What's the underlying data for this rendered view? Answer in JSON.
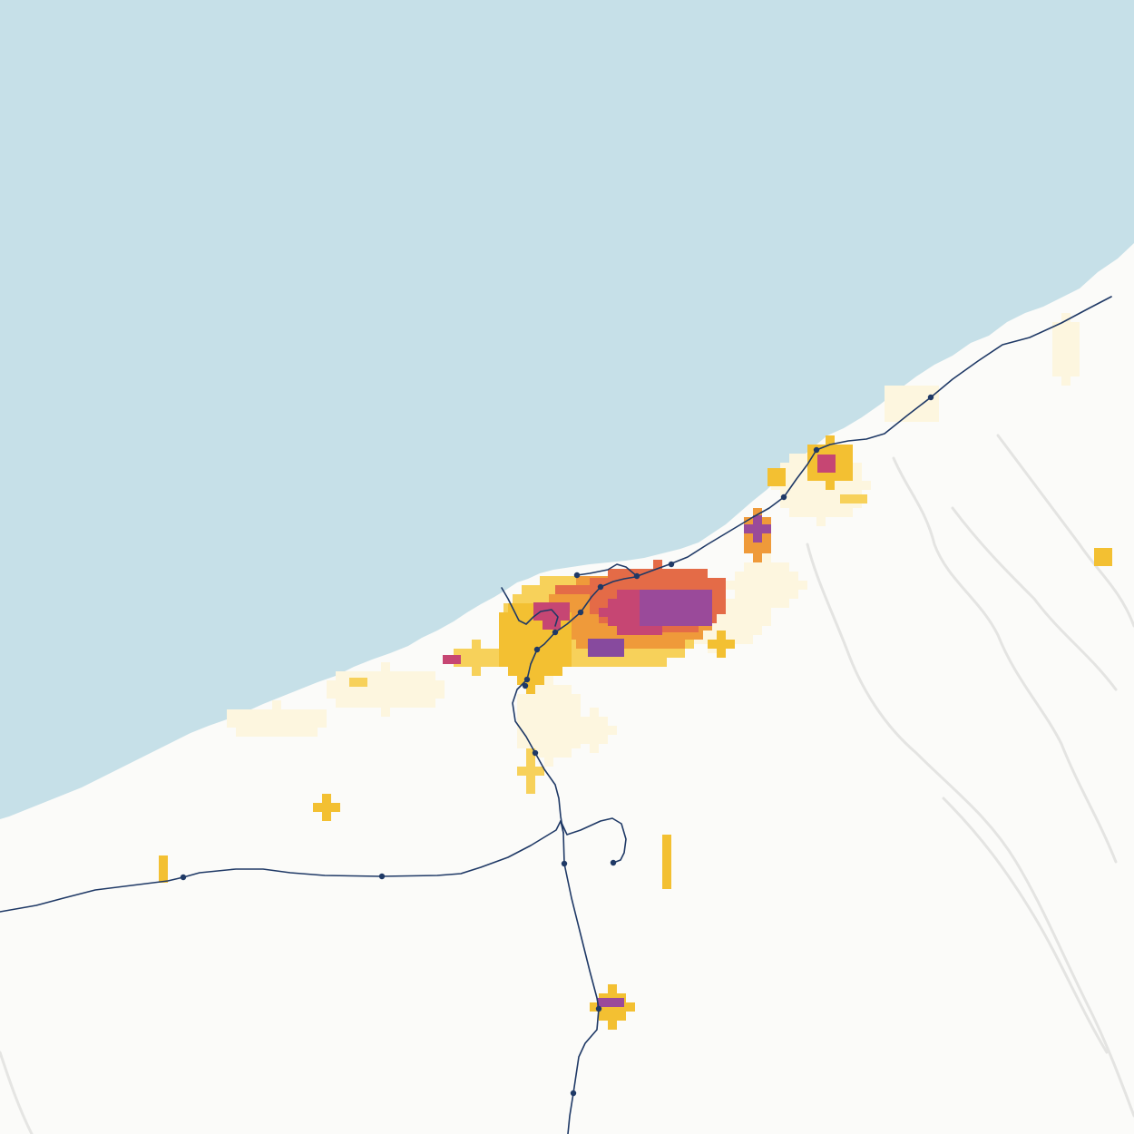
{
  "map": {
    "style": "light terrain basemap with population density grid and rail lines",
    "colors": {
      "sea": "#c6e0e8",
      "land": "#fbfbf9",
      "relief": "#e4e4e2",
      "rail": "#1f3966",
      "density_scale": [
        "#fdf6df",
        "#fbe9a8",
        "#f7d15a",
        "#f3c032",
        "#ef9a3a",
        "#e46b47",
        "#c64673",
        "#9a4a9a",
        "#874a9e"
      ]
    },
    "layers": [
      {
        "id": "sea",
        "kind": "water"
      },
      {
        "id": "terrain",
        "kind": "hillshade"
      },
      {
        "id": "population-density",
        "kind": "grid"
      },
      {
        "id": "railways",
        "kind": "line"
      },
      {
        "id": "stations",
        "kind": "point"
      }
    ]
  }
}
